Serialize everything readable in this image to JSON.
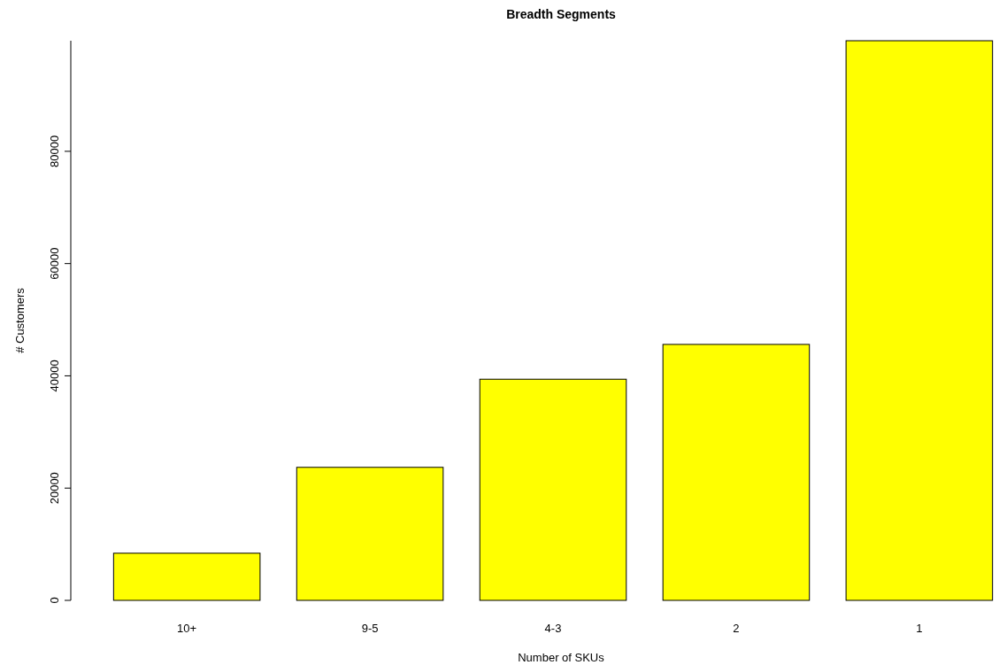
{
  "chart_data": {
    "type": "bar",
    "title": "Breadth Segments",
    "xlabel": "Number of SKUs",
    "ylabel": "# Customers",
    "categories": [
      "10+",
      "9-5",
      "4-3",
      "2",
      "1"
    ],
    "values": [
      8400,
      23700,
      39400,
      45600,
      99700
    ],
    "color": "#ffff00",
    "ylim": [
      0,
      99700
    ],
    "yticks": [
      0,
      20000,
      40000,
      60000,
      80000
    ],
    "grid": false
  }
}
